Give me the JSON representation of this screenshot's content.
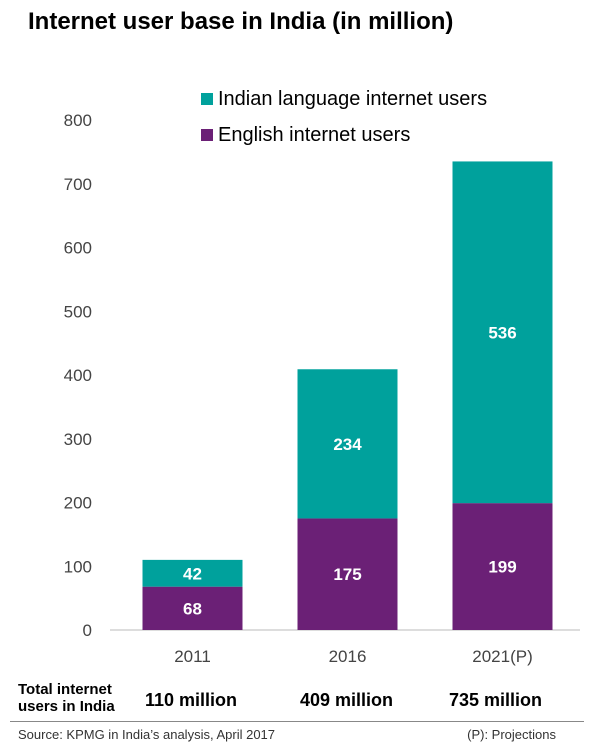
{
  "title": "Internet user base in India (in million)",
  "chart_data": {
    "type": "bar",
    "stacked": true,
    "categories": [
      "2011",
      "2016",
      "2021(P)"
    ],
    "series": [
      {
        "name": "English internet users",
        "values": [
          68,
          175,
          199
        ],
        "color": "#6b2076"
      },
      {
        "name": "Indian language internet users",
        "values": [
          42,
          234,
          536
        ],
        "color": "#00a19c"
      }
    ],
    "ylim": [
      0,
      800
    ],
    "yticks": [
      0,
      100,
      200,
      300,
      400,
      500,
      600,
      700,
      800
    ],
    "legend_position": "top-right",
    "grid": false
  },
  "totals": {
    "label": "Total internet users in India",
    "values": [
      "110 million",
      "409 million",
      "735 million"
    ]
  },
  "footer": {
    "source": "Source: KPMG in India’s analysis, April 2017",
    "note": "(P): Projections"
  }
}
